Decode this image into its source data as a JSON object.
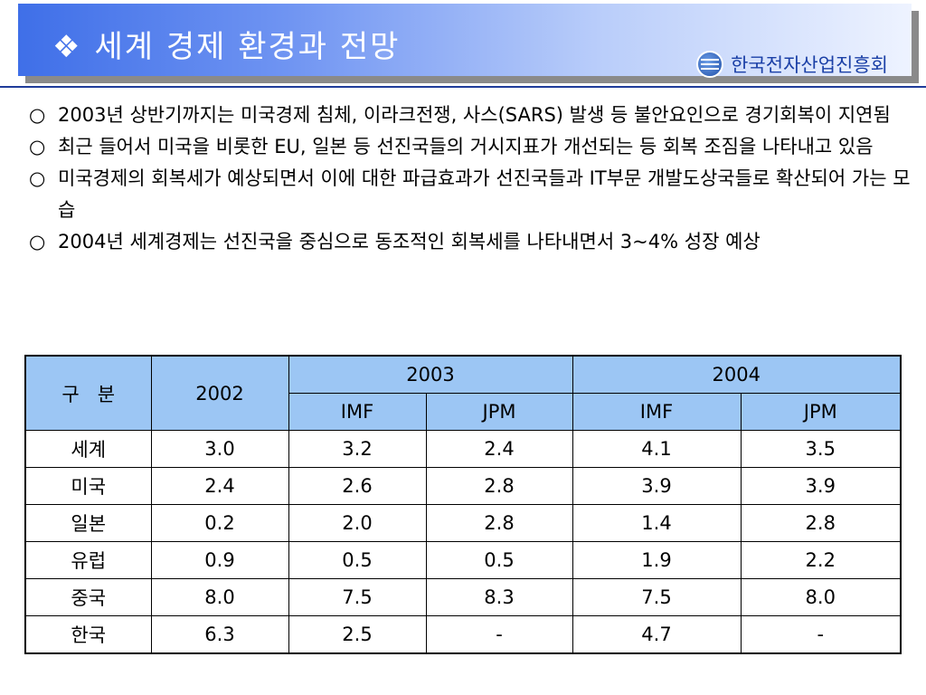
{
  "title": {
    "bullet": "❖",
    "text": "세계 경제 환경과 전망",
    "organization": "한국전자산업진흥회",
    "logo_icon": "kea-logo-icon",
    "gradient_colors": [
      "#3f6fe8",
      "#eef3ff"
    ]
  },
  "bullets": [
    {
      "mark": "○",
      "text": "2003년 상반기까지는 미국경제 침체, 이라크전쟁, 사스(SARS) 발생 등 불안요인으로 경기회복이 지연됨"
    },
    {
      "mark": "○",
      "text": "최근 들어서 미국을 비롯한 EU, 일본 등 선진국들의 거시지표가 개선되는 등 회복 조짐을 나타내고 있음"
    },
    {
      "mark": "○",
      "text": "미국경제의 회복세가 예상되면서 이에 대한 파급효과가 선진국들과 IT부문 개발도상국들로 확산되어 가는 모습"
    },
    {
      "mark": "○",
      "text": "2004년 세계경제는 선진국을 중심으로 동조적인 회복세를 나타내면서 3~4% 성장 예상"
    }
  ],
  "table": {
    "header_color": "#9cc6f4",
    "col_label": "구   분",
    "year_2002": "2002",
    "year_2003": "2003",
    "year_2004": "2004",
    "sub_headers": [
      "IMF",
      "JPM",
      "IMF",
      "JPM"
    ],
    "rows": [
      {
        "label": "세계",
        "values": [
          "3.0",
          "3.2",
          "2.4",
          "4.1",
          "3.5"
        ]
      },
      {
        "label": "미국",
        "values": [
          "2.4",
          "2.6",
          "2.8",
          "3.9",
          "3.9"
        ]
      },
      {
        "label": "일본",
        "values": [
          "0.2",
          "2.0",
          "2.8",
          "1.4",
          "2.8"
        ]
      },
      {
        "label": "유럽",
        "values": [
          "0.9",
          "0.5",
          "0.5",
          "1.9",
          "2.2"
        ]
      },
      {
        "label": "중국",
        "values": [
          "8.0",
          "7.5",
          "8.3",
          "7.5",
          "8.0"
        ]
      },
      {
        "label": "한국",
        "values": [
          "6.3",
          "2.5",
          "-",
          "4.7",
          "-"
        ]
      }
    ]
  }
}
